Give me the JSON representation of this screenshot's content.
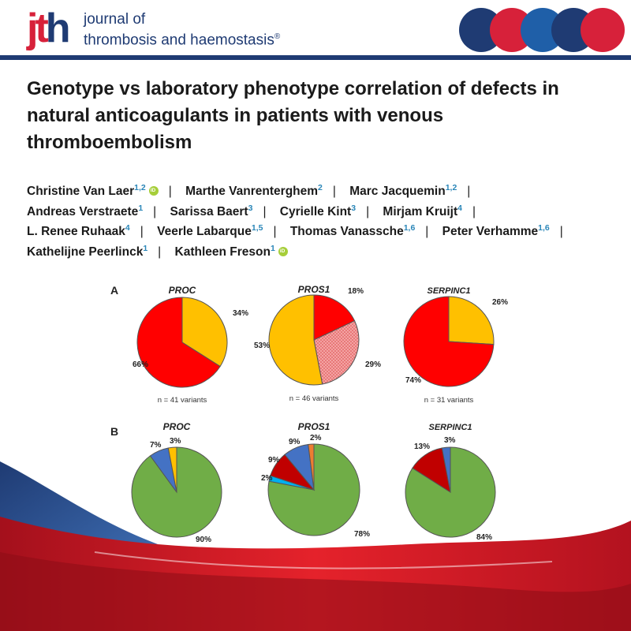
{
  "journal": {
    "logo_j": "j",
    "logo_t": "t",
    "logo_h": "h",
    "name_line1": "journal of",
    "name_line2": "thrombosis and haemostasis",
    "registered_mark": "®",
    "brand_colors": [
      "#1f3b73",
      "#d7213a"
    ]
  },
  "title": "Genotype vs laboratory phenotype correlation of defects in natural anticoagulants in patients with venous thromboembolism",
  "authors": [
    {
      "name": "Christine Van Laer",
      "aff": "1,2",
      "orcid": true
    },
    {
      "name": "Marthe Vanrenterghem",
      "aff": "2",
      "orcid": false
    },
    {
      "name": "Marc Jacquemin",
      "aff": "1,2",
      "orcid": false
    },
    {
      "name": "Andreas Verstraete",
      "aff": "1",
      "orcid": false
    },
    {
      "name": "Sarissa Baert",
      "aff": "3",
      "orcid": false
    },
    {
      "name": "Cyrielle Kint",
      "aff": "3",
      "orcid": false
    },
    {
      "name": "Mirjam Kruijt",
      "aff": "4",
      "orcid": false
    },
    {
      "name": "L. Renee Ruhaak",
      "aff": "4",
      "orcid": false
    },
    {
      "name": "Veerle Labarque",
      "aff": "1,5",
      "orcid": false
    },
    {
      "name": "Thomas Vanassche",
      "aff": "1,6",
      "orcid": false
    },
    {
      "name": "Peter Verhamme",
      "aff": "1,6",
      "orcid": false
    },
    {
      "name": "Kathelijne Peerlinck",
      "aff": "1",
      "orcid": false
    },
    {
      "name": "Kathleen Freson",
      "aff": "1",
      "orcid": true
    }
  ],
  "author_separator": "|",
  "chart_data": [
    {
      "type": "pie",
      "panel": "A",
      "title": "PROC",
      "caption": "n = 41 variants",
      "slices": [
        {
          "label": "34%",
          "value": 34,
          "color": "#ffc000"
        },
        {
          "label": "66%",
          "value": 66,
          "color": "#ff0000"
        }
      ]
    },
    {
      "type": "pie",
      "panel": "A",
      "title": "PROS1",
      "caption": "n = 46 variants",
      "slices": [
        {
          "label": "18%",
          "value": 18,
          "color": "#ff0000"
        },
        {
          "label": "29%",
          "value": 29,
          "color": "#f08080",
          "pattern": "dotted"
        },
        {
          "label": "53%",
          "value": 53,
          "color": "#ffc000"
        }
      ]
    },
    {
      "type": "pie",
      "panel": "A",
      "title": "SERPINC1",
      "caption": "n = 31 variants",
      "slices": [
        {
          "label": "26%",
          "value": 26,
          "color": "#ffc000"
        },
        {
          "label": "74%",
          "value": 74,
          "color": "#ff0000"
        }
      ]
    },
    {
      "type": "pie",
      "panel": "B",
      "title": "PROC",
      "slices": [
        {
          "label": "90%",
          "value": 90,
          "color": "#70ad47"
        },
        {
          "label": "7%",
          "value": 7,
          "color": "#4472c4"
        },
        {
          "label": "3%",
          "value": 3,
          "color": "#ffc000"
        }
      ]
    },
    {
      "type": "pie",
      "panel": "B",
      "title": "PROS1",
      "slices": [
        {
          "label": "78%",
          "value": 78,
          "color": "#70ad47"
        },
        {
          "label": "2%",
          "value": 2,
          "color": "#00b0f0"
        },
        {
          "label": "9%",
          "value": 9,
          "color": "#c00000"
        },
        {
          "label": "9%",
          "value": 9,
          "color": "#4472c4"
        },
        {
          "label": "2%",
          "value": 2,
          "color": "#ed7d31"
        }
      ]
    },
    {
      "type": "pie",
      "panel": "B",
      "title": "SERPINC1",
      "slices": [
        {
          "label": "84%",
          "value": 84,
          "color": "#70ad47"
        },
        {
          "label": "13%",
          "value": 13,
          "color": "#c00000"
        },
        {
          "label": "3%",
          "value": 3,
          "color": "#4472c4"
        }
      ]
    }
  ]
}
